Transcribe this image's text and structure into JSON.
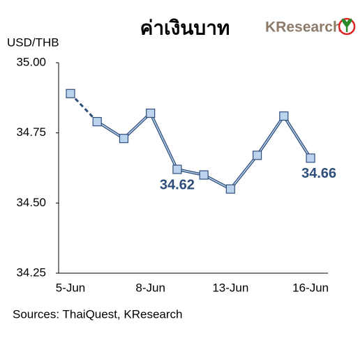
{
  "chart_data": {
    "type": "line",
    "title": "ค่าเงินบาท",
    "logo": "KResearch",
    "y_label": "USD/THB",
    "source": "Sources: ThaiQuest, KResearch",
    "categories": [
      "5-Jun",
      null,
      null,
      "8-Jun",
      null,
      null,
      "13-Jun",
      null,
      null,
      "16-Jun"
    ],
    "values": [
      34.89,
      34.79,
      34.73,
      34.82,
      34.62,
      34.6,
      34.55,
      34.67,
      34.81,
      34.66
    ],
    "value_labels": [
      null,
      null,
      null,
      null,
      "34.62",
      null,
      null,
      null,
      null,
      "34.66"
    ],
    "color": "#2d4e7a",
    "marker_color": "#bcd3ee",
    "dashed_first_segment": true,
    "ylim": [
      34.25,
      35.0
    ],
    "yticks": [
      34.25,
      {
        "value": 34.5,
        "label": "34.50"
      },
      34.75,
      {
        "value": 35.0,
        "label": "35.00"
      }
    ]
  }
}
